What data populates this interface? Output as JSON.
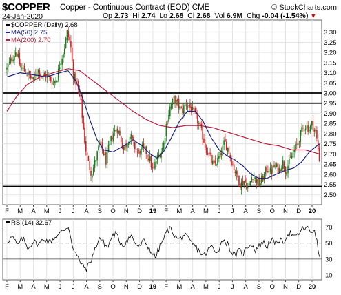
{
  "header": {
    "symbol": "$COPPER",
    "description": "Copper - Continuous Contract (EOD)",
    "exchange": "CME",
    "date": "24-Jan-2020",
    "brand": "© StockCharts.com",
    "open_label": "Op",
    "open": "2.73",
    "high_label": "Hi",
    "high": "2.74",
    "low_label": "Lo",
    "low": "2.68",
    "close_label": "Cl",
    "close": "2.68",
    "volume_label": "Vol",
    "volume": "6.9M",
    "change_label": "Chg",
    "change": "-0.04 (-1.54%)",
    "change_icon": "down-triangle-icon",
    "down_color": "#cc0000"
  },
  "chart_data": [
    {
      "type": "candlestick",
      "legend": [
        {
          "label": "$COPPER (Daily) 2.68",
          "color": "#000000"
        },
        {
          "label": "MA(50) 2.75",
          "color": "#1a237e"
        },
        {
          "label": "MA(200) 2.70",
          "color": "#b71c3c"
        }
      ],
      "ylim": [
        2.45,
        3.36
      ],
      "y_ticks": [
        "3.30",
        "3.25",
        "3.20",
        "3.15",
        "3.10",
        "3.05",
        "3.00",
        "2.95",
        "2.90",
        "2.85",
        "2.80",
        "2.75",
        "2.70",
        "2.65",
        "2.60",
        "2.55",
        "2.50"
      ],
      "x_ticks": [
        "F",
        "M",
        "A",
        "M",
        "J",
        "J",
        "A",
        "S",
        "O",
        "N",
        "D",
        "19",
        "F",
        "M",
        "A",
        "M",
        "J",
        "J",
        "A",
        "S",
        "O",
        "N",
        "D",
        "20"
      ],
      "year_ticks": [
        "19",
        "20"
      ],
      "horizontal_lines": [
        3.0,
        2.95,
        2.54
      ],
      "up_color": "#1e7d1e",
      "down_color": "#c62828",
      "price_path": [
        [
          0,
          3.12
        ],
        [
          0.3,
          3.16
        ],
        [
          0.7,
          3.21
        ],
        [
          1.0,
          3.13
        ],
        [
          1.5,
          3.1
        ],
        [
          2.0,
          3.06
        ],
        [
          2.3,
          3.12
        ],
        [
          2.7,
          3.08
        ],
        [
          3.0,
          3.09
        ],
        [
          3.5,
          3.05
        ],
        [
          3.8,
          3.08
        ],
        [
          4.0,
          3.15
        ],
        [
          4.3,
          3.21
        ],
        [
          4.55,
          3.3
        ],
        [
          4.8,
          3.24
        ],
        [
          5.0,
          3.09
        ],
        [
          5.3,
          3.04
        ],
        [
          5.6,
          2.94
        ],
        [
          5.8,
          2.8
        ],
        [
          6.0,
          2.7
        ],
        [
          6.2,
          2.64
        ],
        [
          6.4,
          2.6
        ],
        [
          6.6,
          2.65
        ],
        [
          6.8,
          2.7
        ],
        [
          7.0,
          2.75
        ],
        [
          7.2,
          2.72
        ],
        [
          7.5,
          2.66
        ],
        [
          7.7,
          2.74
        ],
        [
          8.0,
          2.8
        ],
        [
          8.3,
          2.83
        ],
        [
          8.6,
          2.77
        ],
        [
          8.8,
          2.72
        ],
        [
          9.0,
          2.75
        ],
        [
          9.3,
          2.79
        ],
        [
          9.6,
          2.74
        ],
        [
          9.9,
          2.7
        ],
        [
          10.2,
          2.73
        ],
        [
          10.5,
          2.71
        ],
        [
          10.8,
          2.67
        ],
        [
          11.0,
          2.61
        ],
        [
          11.2,
          2.66
        ],
        [
          11.5,
          2.7
        ],
        [
          11.8,
          2.74
        ],
        [
          12.0,
          2.84
        ],
        [
          12.3,
          2.93
        ],
        [
          12.6,
          2.97
        ],
        [
          12.9,
          2.94
        ],
        [
          13.2,
          2.91
        ],
        [
          13.5,
          2.95
        ],
        [
          13.8,
          2.93
        ],
        [
          14.1,
          2.9
        ],
        [
          14.4,
          2.86
        ],
        [
          14.7,
          2.8
        ],
        [
          15.0,
          2.73
        ],
        [
          15.3,
          2.68
        ],
        [
          15.6,
          2.64
        ],
        [
          15.9,
          2.67
        ],
        [
          16.2,
          2.71
        ],
        [
          16.4,
          2.76
        ],
        [
          16.7,
          2.72
        ],
        [
          17.0,
          2.65
        ],
        [
          17.3,
          2.6
        ],
        [
          17.6,
          2.55
        ],
        [
          17.9,
          2.57
        ],
        [
          18.2,
          2.53
        ],
        [
          18.5,
          2.6
        ],
        [
          18.8,
          2.57
        ],
        [
          19.0,
          2.55
        ],
        [
          19.3,
          2.58
        ],
        [
          19.6,
          2.63
        ],
        [
          19.9,
          2.61
        ],
        [
          20.2,
          2.64
        ],
        [
          20.5,
          2.62
        ],
        [
          20.8,
          2.66
        ],
        [
          21.0,
          2.62
        ],
        [
          21.3,
          2.66
        ],
        [
          21.6,
          2.71
        ],
        [
          21.9,
          2.75
        ],
        [
          22.2,
          2.81
        ],
        [
          22.5,
          2.84
        ],
        [
          22.8,
          2.82
        ],
        [
          23.0,
          2.85
        ],
        [
          23.3,
          2.8
        ],
        [
          23.55,
          2.68
        ]
      ],
      "ma50_path": [
        [
          0,
          3.08
        ],
        [
          1.0,
          3.1
        ],
        [
          2.0,
          3.09
        ],
        [
          3.0,
          3.08
        ],
        [
          4.0,
          3.1
        ],
        [
          4.6,
          3.11
        ],
        [
          5.2,
          3.06
        ],
        [
          5.8,
          2.96
        ],
        [
          6.3,
          2.86
        ],
        [
          6.8,
          2.77
        ],
        [
          7.3,
          2.72
        ],
        [
          8.0,
          2.71
        ],
        [
          8.8,
          2.74
        ],
        [
          9.5,
          2.77
        ],
        [
          10.2,
          2.74
        ],
        [
          10.8,
          2.7
        ],
        [
          11.3,
          2.68
        ],
        [
          11.8,
          2.71
        ],
        [
          12.4,
          2.78
        ],
        [
          13.0,
          2.86
        ],
        [
          13.6,
          2.91
        ],
        [
          14.2,
          2.91
        ],
        [
          14.8,
          2.86
        ],
        [
          15.4,
          2.78
        ],
        [
          16.0,
          2.72
        ],
        [
          16.6,
          2.69
        ],
        [
          17.2,
          2.67
        ],
        [
          17.8,
          2.64
        ],
        [
          18.4,
          2.6
        ],
        [
          19.0,
          2.58
        ],
        [
          19.6,
          2.58
        ],
        [
          20.3,
          2.6
        ],
        [
          21.0,
          2.62
        ],
        [
          21.6,
          2.63
        ],
        [
          22.2,
          2.66
        ],
        [
          22.8,
          2.71
        ],
        [
          23.55,
          2.75
        ]
      ],
      "ma200_path": [
        [
          0,
          2.91
        ],
        [
          0.7,
          2.98
        ],
        [
          1.5,
          3.04
        ],
        [
          2.5,
          3.08
        ],
        [
          3.5,
          3.1
        ],
        [
          4.6,
          3.12
        ],
        [
          5.5,
          3.11
        ],
        [
          6.5,
          3.06
        ],
        [
          7.5,
          3.01
        ],
        [
          8.5,
          2.96
        ],
        [
          9.5,
          2.91
        ],
        [
          10.5,
          2.87
        ],
        [
          11.5,
          2.84
        ],
        [
          12.5,
          2.83
        ],
        [
          13.5,
          2.84
        ],
        [
          14.5,
          2.84
        ],
        [
          15.5,
          2.83
        ],
        [
          16.5,
          2.81
        ],
        [
          17.5,
          2.79
        ],
        [
          18.5,
          2.77
        ],
        [
          19.5,
          2.75
        ],
        [
          20.5,
          2.74
        ],
        [
          21.5,
          2.72
        ],
        [
          22.5,
          2.72
        ],
        [
          23.55,
          2.7
        ]
      ]
    },
    {
      "type": "line",
      "legend": [
        {
          "label": "RSI(14) 32.67",
          "color": "#000000"
        }
      ],
      "ylim": [
        4,
        80
      ],
      "y_ticks": [
        "70",
        "50",
        "30",
        "10"
      ],
      "reference_lines": [
        70,
        50,
        30
      ],
      "rsi_path": [
        [
          0,
          52
        ],
        [
          0.4,
          58
        ],
        [
          0.8,
          47
        ],
        [
          1.2,
          56
        ],
        [
          1.6,
          44
        ],
        [
          2.0,
          52
        ],
        [
          2.4,
          48
        ],
        [
          2.8,
          56
        ],
        [
          3.2,
          51
        ],
        [
          3.6,
          57
        ],
        [
          4.0,
          62
        ],
        [
          4.4,
          68
        ],
        [
          4.6,
          72
        ],
        [
          4.8,
          60
        ],
        [
          5.0,
          42
        ],
        [
          5.3,
          33
        ],
        [
          5.6,
          25
        ],
        [
          5.8,
          20
        ],
        [
          6.0,
          18
        ],
        [
          6.2,
          24
        ],
        [
          6.4,
          31
        ],
        [
          6.6,
          40
        ],
        [
          6.8,
          50
        ],
        [
          7.0,
          57
        ],
        [
          7.3,
          50
        ],
        [
          7.6,
          44
        ],
        [
          7.9,
          58
        ],
        [
          8.2,
          62
        ],
        [
          8.5,
          52
        ],
        [
          8.8,
          47
        ],
        [
          9.1,
          55
        ],
        [
          9.4,
          59
        ],
        [
          9.7,
          49
        ],
        [
          10.0,
          45
        ],
        [
          10.3,
          53
        ],
        [
          10.6,
          47
        ],
        [
          10.9,
          39
        ],
        [
          11.2,
          32
        ],
        [
          11.5,
          45
        ],
        [
          11.8,
          55
        ],
        [
          12.1,
          66
        ],
        [
          12.4,
          68
        ],
        [
          12.7,
          58
        ],
        [
          13.0,
          54
        ],
        [
          13.3,
          61
        ],
        [
          13.6,
          56
        ],
        [
          13.9,
          50
        ],
        [
          14.2,
          46
        ],
        [
          14.5,
          40
        ],
        [
          14.8,
          34
        ],
        [
          15.1,
          39
        ],
        [
          15.4,
          47
        ],
        [
          15.7,
          38
        ],
        [
          16.0,
          44
        ],
        [
          16.3,
          55
        ],
        [
          16.6,
          50
        ],
        [
          16.9,
          40
        ],
        [
          17.2,
          34
        ],
        [
          17.5,
          41
        ],
        [
          17.8,
          36
        ],
        [
          18.1,
          45
        ],
        [
          18.4,
          50
        ],
        [
          18.7,
          41
        ],
        [
          19.0,
          46
        ],
        [
          19.3,
          52
        ],
        [
          19.6,
          45
        ],
        [
          19.9,
          56
        ],
        [
          20.2,
          48
        ],
        [
          20.5,
          55
        ],
        [
          20.8,
          50
        ],
        [
          21.1,
          60
        ],
        [
          21.4,
          63
        ],
        [
          21.7,
          56
        ],
        [
          22.0,
          62
        ],
        [
          22.3,
          68
        ],
        [
          22.6,
          70
        ],
        [
          22.9,
          63
        ],
        [
          23.2,
          68
        ],
        [
          23.4,
          48
        ],
        [
          23.55,
          33
        ]
      ]
    }
  ]
}
